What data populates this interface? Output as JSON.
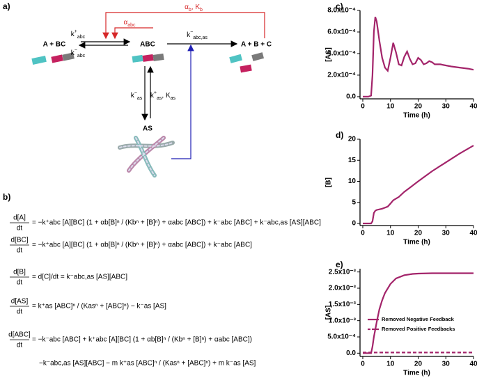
{
  "diagram": {
    "panel": "a)",
    "species": [
      "A + BC",
      "ABC",
      "A + B + C",
      "AS"
    ],
    "rates": [
      {
        "base": "k",
        "sup": "+",
        "sub": "abc"
      },
      {
        "base": "k",
        "sup": "−",
        "sub": "abc"
      },
      {
        "base": "α",
        "sub": "abc"
      },
      {
        "base": "α",
        "sub": "b",
        "rest": ", K",
        "sub2": "b"
      },
      {
        "base": "k",
        "sup": "−",
        "sub": "abc,as"
      },
      {
        "base": "k",
        "sup": "−",
        "sub": "as"
      },
      {
        "base": "k",
        "sup": "+",
        "sub": "as",
        "rest": ", K",
        "sub2": "as"
      }
    ]
  },
  "equations": {
    "panel": "b)",
    "items": [
      {
        "num": "d[A]",
        "den": "dt",
        "rhs": [
          "= −k⁺abc [A][BC] (1 + αb[B]ⁿ / (Kbⁿ + [B]ⁿ) + αabc [ABC]) + k⁻abc [ABC] + k⁻abc,as [AS][ABC]"
        ]
      },
      {
        "num": "d[BC]",
        "den": "dt",
        "rhs": [
          "= −k⁺abc [A][BC] (1 + αb[B]ⁿ / (Kbⁿ + [B]ⁿ) + αabc [ABC]) + k⁻abc [ABC]"
        ]
      },
      {
        "num": "d[B]",
        "den": "dt",
        "rhs": [
          "= d[C]/dt = k⁻abc,as [AS][ABC]"
        ]
      },
      {
        "num": "d[AS]",
        "den": "dt",
        "rhs": [
          "= k⁺as [ABC]ⁿ / (Kasⁿ + [ABC]ⁿ) − k⁻as [AS]"
        ]
      },
      {
        "num": "d[ABC]",
        "den": "dt",
        "rhs": [
          "= −k⁻abc [ABC] + k⁺abc [A][BC] (1 + αb[B]ⁿ / (Kbⁿ + [B]ⁿ) + αabc [ABC])",
          "−k⁻abc,as [AS][ABC] − m k⁺as [ABC]ⁿ / (Kasⁿ + [ABC]ⁿ) + m k⁻as [AS]"
        ]
      }
    ]
  },
  "chart_data": [
    {
      "type": "line",
      "panel": "c)",
      "y_label": "[AS]",
      "x_label": "Time (h)",
      "x": [
        0,
        2,
        3,
        3.5,
        4,
        4.5,
        5,
        6,
        7,
        8,
        9,
        10,
        11,
        12,
        13,
        14,
        15,
        16,
        17,
        18,
        19,
        20,
        21,
        22,
        23,
        24,
        25,
        26,
        28,
        30,
        32,
        35,
        38,
        40
      ],
      "series": [
        {
          "name": null,
          "color": "#a3246a",
          "values": [
            0,
            0,
            1e-05,
            0.0002,
            0.0006,
            0.00074,
            0.0007,
            0.00052,
            0.00036,
            0.00027,
            0.00024,
            0.00036,
            0.0005,
            0.00041,
            0.0003,
            0.00029,
            0.00037,
            0.00042,
            0.00035,
            0.0003,
            0.00031,
            0.00036,
            0.00034,
            0.0003,
            0.00031,
            0.00033,
            0.00032,
            0.0003,
            0.0003,
            0.00029,
            0.00028,
            0.00027,
            0.00026,
            0.00025
          ]
        }
      ],
      "xlim": [
        -1,
        40
      ],
      "xticks": [
        0,
        10,
        20,
        30,
        40
      ],
      "ylim": [
        -2e-05,
        0.0008
      ],
      "yticks": [
        {
          "value": 0,
          "label": "0.0"
        },
        {
          "value": 0.0002,
          "label": "2.0x10⁻⁴"
        },
        {
          "value": 0.0004,
          "label": "4.0x10⁻⁴"
        },
        {
          "value": 0.0006,
          "label": "6.0x10⁻⁴"
        },
        {
          "value": 0.0008,
          "label": "8.0x10⁻⁴"
        }
      ]
    },
    {
      "type": "line",
      "panel": "d)",
      "y_label": "[B]",
      "x_label": "Time (h)",
      "x": [
        0,
        3,
        3.5,
        4,
        4.5,
        5,
        7,
        9,
        10,
        11,
        12,
        13,
        15,
        17,
        20,
        25,
        30,
        35,
        40
      ],
      "series": [
        {
          "name": null,
          "color": "#a3246a",
          "values": [
            0,
            0,
            0.5,
            2.5,
            3,
            3.2,
            3.5,
            4,
            4.7,
            5.5,
            5.9,
            6.3,
            7.5,
            8.5,
            10,
            12.4,
            14.5,
            16.6,
            18.5
          ]
        }
      ],
      "xlim": [
        -1,
        40
      ],
      "xticks": [
        0,
        10,
        20,
        30,
        40
      ],
      "ylim": [
        -0.5,
        20
      ],
      "yticks": [
        0,
        5,
        10,
        15,
        20
      ]
    },
    {
      "type": "line",
      "panel": "e)",
      "y_label": "[AS]",
      "x_label": "Time (h)",
      "legend": "right",
      "x": [
        0,
        3,
        3.5,
        4,
        5,
        6,
        7,
        8,
        10,
        12,
        15,
        18,
        20,
        25,
        30,
        40
      ],
      "series": [
        {
          "name": "Removed Negative Feedback",
          "color": "#a3246a",
          "dashed": false,
          "values": [
            0,
            0,
            0.0002,
            0.0005,
            0.00095,
            0.00135,
            0.00163,
            0.00185,
            0.00213,
            0.0023,
            0.0024,
            0.00244,
            0.00245,
            0.00246,
            0.00246,
            0.00246
          ]
        },
        {
          "name": "Removed Positive Feedbacks",
          "color": "#a3246a",
          "dashed": true,
          "values": [
            2e-05,
            2e-05,
            2e-05,
            2e-05,
            2e-05,
            2e-05,
            2e-05,
            2e-05,
            2e-05,
            2e-05,
            2e-05,
            2e-05,
            2e-05,
            2e-05,
            2e-05,
            2e-05
          ]
        }
      ],
      "xlim": [
        -1,
        40
      ],
      "xticks": [
        0,
        10,
        20,
        30,
        40
      ],
      "ylim": [
        -0.0001,
        0.0026
      ],
      "yticks": [
        {
          "value": 0,
          "label": "0.0"
        },
        {
          "value": 0.0005,
          "label": "5.0x10⁻⁴"
        },
        {
          "value": 0.001,
          "label": "1.0x10⁻³"
        },
        {
          "value": 0.0015,
          "label": "1.5x10⁻³"
        },
        {
          "value": 0.002,
          "label": "2.0x10⁻³"
        },
        {
          "value": 0.0025,
          "label": "2.5x10⁻³"
        }
      ]
    }
  ]
}
